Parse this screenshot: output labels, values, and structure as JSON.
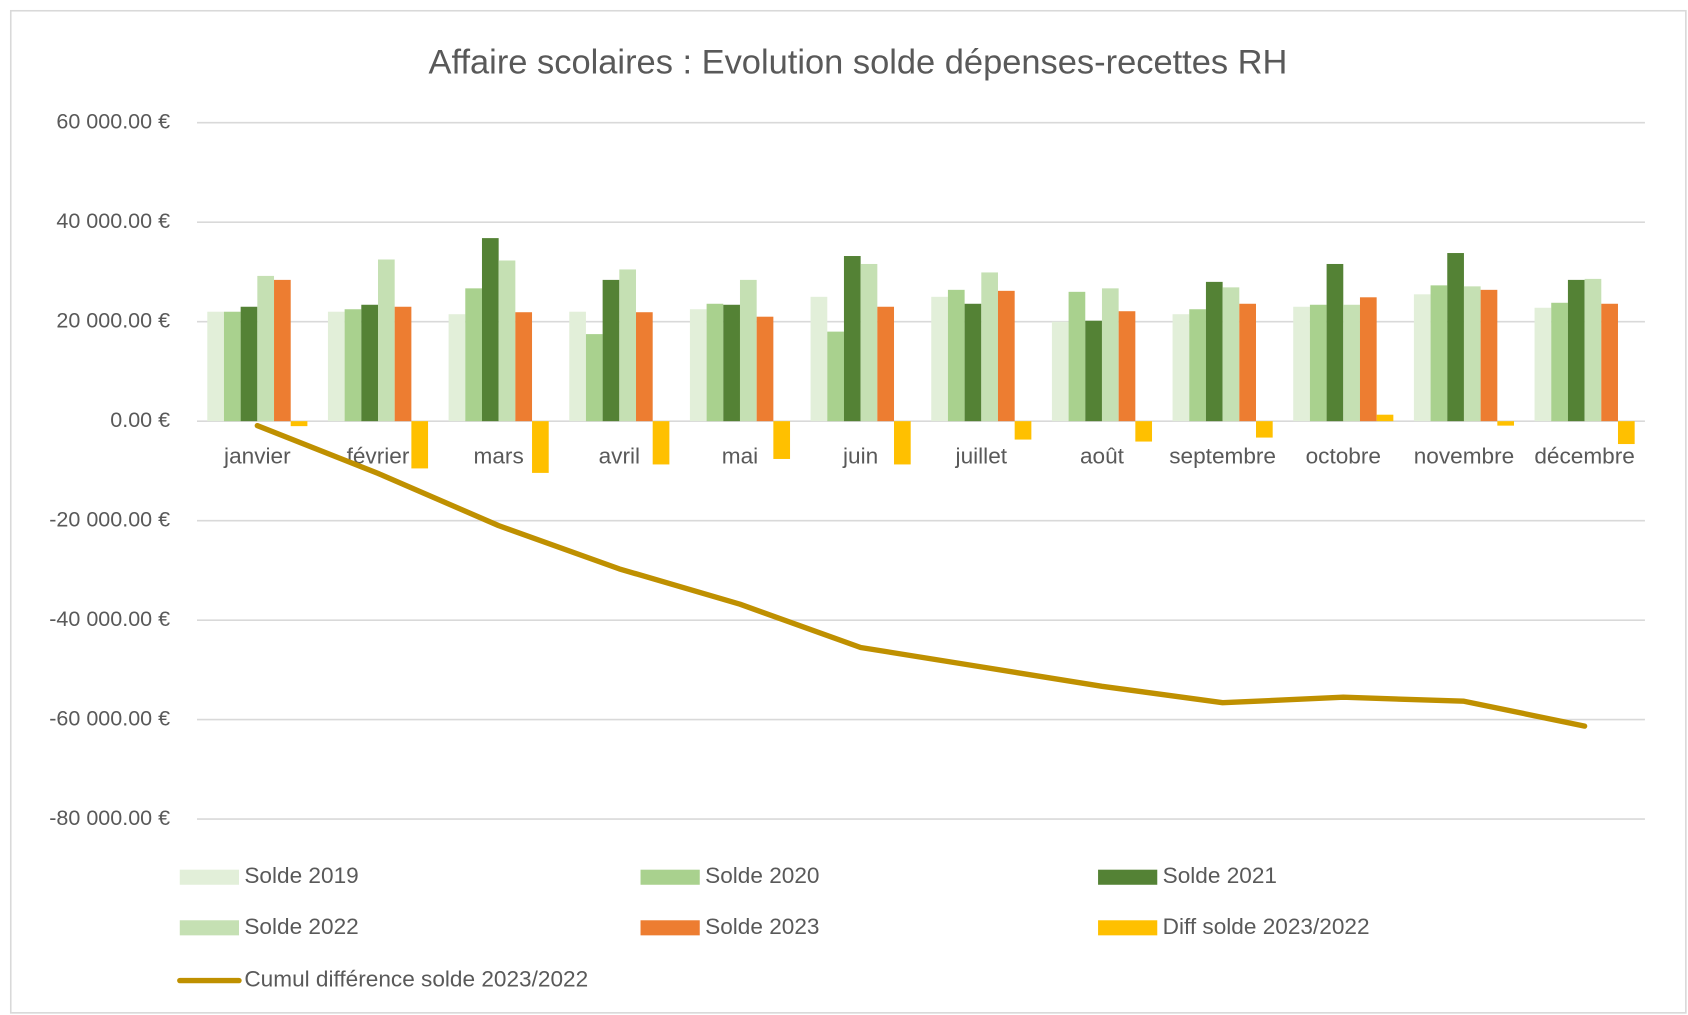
{
  "chart_data": {
    "type": "bar",
    "title": "Affaire scolaires : Evolution solde dépenses-recettes RH",
    "categories": [
      "janvier",
      "février",
      "mars",
      "avril",
      "mai",
      "juin",
      "juillet",
      "août",
      "septembre",
      "octobre",
      "novembre",
      "décembre"
    ],
    "series": [
      {
        "name": "Solde 2019",
        "color": "#e2efd9",
        "values": [
          22000,
          22000,
          21500,
          22000,
          22500,
          25000,
          25000,
          20000,
          21500,
          23000,
          25500,
          22800
        ]
      },
      {
        "name": "Solde 2020",
        "color": "#a9d18e",
        "values": [
          22000,
          22500,
          26700,
          17500,
          23600,
          18000,
          26400,
          26000,
          22500,
          23400,
          27300,
          23800
        ]
      },
      {
        "name": "Solde 2021",
        "color": "#548235",
        "values": [
          23000,
          23400,
          36800,
          28400,
          23400,
          33200,
          23600,
          20200,
          28000,
          31600,
          33800,
          28400
        ]
      },
      {
        "name": "Solde 2022",
        "color": "#c5e0b3",
        "values": [
          29200,
          32500,
          32300,
          30500,
          28400,
          31600,
          29900,
          26700,
          26900,
          23400,
          27100,
          28600
        ]
      },
      {
        "name": "Solde 2023",
        "color": "#ed7d31",
        "values": [
          28400,
          23000,
          21900,
          21900,
          21000,
          23000,
          26200,
          22100,
          23600,
          24900,
          26400,
          23600
        ]
      },
      {
        "name": "Diff solde 2023/2022",
        "color": "#ffc000",
        "values": [
          -1000,
          -9500,
          -10400,
          -8700,
          -7600,
          -8700,
          -3700,
          -4100,
          -3300,
          1300,
          -900,
          -4600
        ]
      },
      {
        "name": "Cumul différence solde 2023/2022",
        "color": "#bf9000",
        "type": "line",
        "values": [
          -900,
          -10500,
          -21000,
          -29700,
          -36800,
          -45500,
          -49400,
          -53300,
          -56600,
          -55500,
          -56300,
          -61300
        ]
      }
    ],
    "ylim": [
      -80000,
      60000
    ],
    "yticks": [
      {
        "value": 60000,
        "label": "60 000.00 €"
      },
      {
        "value": 40000,
        "label": "40 000.00 €"
      },
      {
        "value": 20000,
        "label": "20 000.00 €"
      },
      {
        "value": 0,
        "label": "0.00 €"
      },
      {
        "value": -20000,
        "label": "-20 000.00 €"
      },
      {
        "value": -40000,
        "label": "-40 000.00 €"
      },
      {
        "value": -60000,
        "label": "-60 000.00 €"
      },
      {
        "value": -80000,
        "label": "-80 000.00 €"
      }
    ],
    "grid": true,
    "legend": "bottom"
  }
}
